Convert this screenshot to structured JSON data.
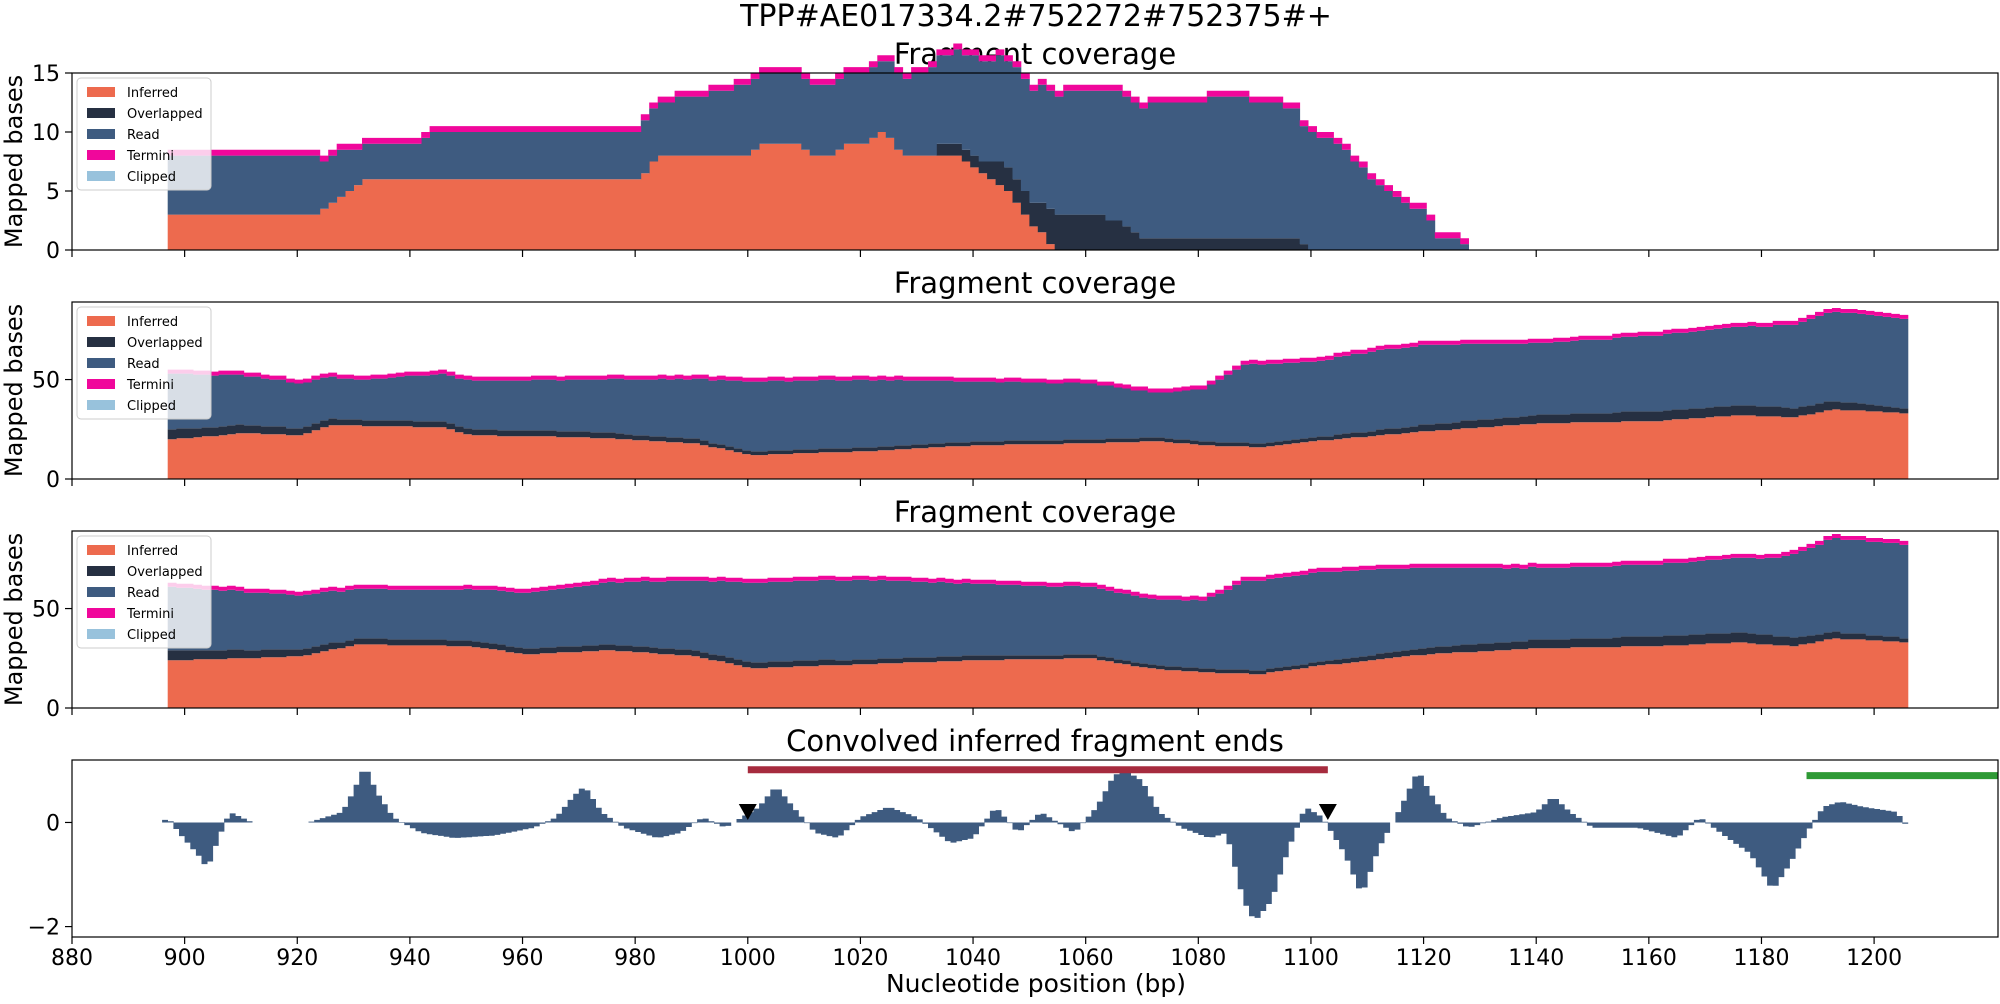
{
  "figure_title": "TPP#AE017334.2#752272#752375#+",
  "colors": {
    "inferred": "#ed6a4e",
    "overlapped": "#263042",
    "read": "#3e5b80",
    "termini": "#f0079b",
    "clipped": "#98c2dc",
    "conv": "#3e5b80",
    "red_bar": "#a62b3e",
    "green_bar": "#2e9a35"
  },
  "xlabel": "Nucleotide position (bp)",
  "xlim": [
    880,
    1222
  ],
  "xticks": [
    880,
    900,
    920,
    940,
    960,
    980,
    1000,
    1020,
    1040,
    1060,
    1080,
    1100,
    1120,
    1140,
    1160,
    1180,
    1200
  ],
  "legend": [
    "Inferred",
    "Overlapped",
    "Read",
    "Termini",
    "Clipped"
  ],
  "chart_data": [
    {
      "type": "area",
      "title": "Fragment coverage",
      "ylabel": "Mapped bases",
      "ylim": [
        0,
        15
      ],
      "yticks": [
        0,
        5,
        10,
        15
      ],
      "legend_position": "upper-left",
      "x_start": 897,
      "x_end": 1127,
      "series_keyframes": {
        "inferred": [
          [
            897,
            3
          ],
          [
            922,
            3
          ],
          [
            925,
            4
          ],
          [
            928,
            5
          ],
          [
            932,
            6
          ],
          [
            980,
            6
          ],
          [
            983,
            8
          ],
          [
            1000,
            8
          ],
          [
            1002,
            9
          ],
          [
            1008,
            9
          ],
          [
            1010,
            8
          ],
          [
            1015,
            8
          ],
          [
            1017,
            9
          ],
          [
            1021,
            9
          ],
          [
            1023,
            10
          ],
          [
            1025,
            9
          ],
          [
            1027,
            8
          ],
          [
            1037,
            8
          ],
          [
            1040,
            7
          ],
          [
            1043,
            6
          ],
          [
            1046,
            5
          ],
          [
            1048,
            3
          ],
          [
            1050,
            2
          ],
          [
            1052,
            1
          ],
          [
            1054,
            0
          ],
          [
            1127,
            0
          ]
        ],
        "overlapped": [
          [
            897,
            0
          ],
          [
            1032,
            0
          ],
          [
            1034,
            1
          ],
          [
            1040,
            1
          ],
          [
            1045,
            2
          ],
          [
            1050,
            2
          ],
          [
            1054,
            3
          ],
          [
            1062,
            3
          ],
          [
            1066,
            2
          ],
          [
            1070,
            1
          ],
          [
            1097,
            1
          ],
          [
            1099,
            0
          ],
          [
            1127,
            0
          ]
        ],
        "read": [
          [
            897,
            5
          ],
          [
            922,
            5
          ],
          [
            924,
            4
          ],
          [
            926,
            4
          ],
          [
            930,
            3
          ],
          [
            932,
            3
          ],
          [
            940,
            3
          ],
          [
            944,
            4
          ],
          [
            978,
            4
          ],
          [
            1000,
            6
          ],
          [
            1022,
            6
          ],
          [
            1030,
            7
          ],
          [
            1052,
            10
          ],
          [
            1066,
            11
          ],
          [
            1086,
            12
          ],
          [
            1096,
            11
          ],
          [
            1098,
            10
          ],
          [
            1104,
            9
          ],
          [
            1108,
            7
          ],
          [
            1112,
            5
          ],
          [
            1116,
            4
          ],
          [
            1120,
            3
          ],
          [
            1122,
            1
          ],
          [
            1124,
            1
          ],
          [
            1126,
            1
          ],
          [
            1127,
            0
          ]
        ],
        "termini": [
          [
            897,
            0.6
          ],
          [
            1127,
            0.4
          ]
        ],
        "clipped": [
          [
            897,
            0
          ],
          [
            1127,
            0
          ]
        ]
      }
    },
    {
      "type": "area",
      "title": "Fragment coverage",
      "ylabel": "Mapped bases",
      "ylim": [
        0,
        89
      ],
      "yticks": [
        0,
        50
      ],
      "legend_position": "upper-left",
      "x_start": 897,
      "x_end": 1206,
      "series_keyframes": {
        "inferred": [
          [
            897,
            20
          ],
          [
            910,
            23
          ],
          [
            920,
            22
          ],
          [
            925,
            27
          ],
          [
            945,
            26
          ],
          [
            950,
            22
          ],
          [
            970,
            21
          ],
          [
            990,
            18
          ],
          [
            1000,
            12
          ],
          [
            1020,
            14
          ],
          [
            1040,
            17
          ],
          [
            1060,
            18
          ],
          [
            1072,
            19
          ],
          [
            1080,
            17
          ],
          [
            1090,
            16
          ],
          [
            1100,
            19
          ],
          [
            1120,
            24
          ],
          [
            1140,
            28
          ],
          [
            1160,
            29
          ],
          [
            1175,
            32
          ],
          [
            1185,
            31
          ],
          [
            1192,
            35
          ],
          [
            1206,
            33
          ]
        ],
        "overlapped": [
          [
            897,
            5
          ],
          [
            930,
            3
          ],
          [
            970,
            3
          ],
          [
            1000,
            2
          ],
          [
            1060,
            2
          ],
          [
            1100,
            2
          ],
          [
            1130,
            4
          ],
          [
            1160,
            5
          ],
          [
            1180,
            5
          ],
          [
            1195,
            4
          ],
          [
            1206,
            2
          ]
        ],
        "read": [
          [
            897,
            28
          ],
          [
            930,
            20
          ],
          [
            945,
            24
          ],
          [
            970,
            26
          ],
          [
            990,
            30
          ],
          [
            1000,
            35
          ],
          [
            1020,
            34
          ],
          [
            1040,
            30
          ],
          [
            1060,
            28
          ],
          [
            1072,
            22
          ],
          [
            1080,
            26
          ],
          [
            1088,
            40
          ],
          [
            1100,
            38
          ],
          [
            1110,
            40
          ],
          [
            1120,
            40
          ],
          [
            1140,
            36
          ],
          [
            1160,
            38
          ],
          [
            1180,
            40
          ],
          [
            1192,
            45
          ],
          [
            1206,
            45
          ]
        ],
        "termini": [
          [
            897,
            2
          ],
          [
            1206,
            2
          ]
        ],
        "clipped": [
          [
            897,
            0
          ],
          [
            1206,
            0
          ]
        ]
      }
    },
    {
      "type": "area",
      "title": "Fragment coverage",
      "ylabel": "Mapped bases",
      "ylim": [
        0,
        89
      ],
      "yticks": [
        0,
        50
      ],
      "legend_position": "upper-left",
      "x_start": 897,
      "x_end": 1206,
      "series_keyframes": {
        "inferred": [
          [
            897,
            24
          ],
          [
            910,
            25
          ],
          [
            920,
            26
          ],
          [
            930,
            32
          ],
          [
            950,
            31
          ],
          [
            960,
            27
          ],
          [
            975,
            29
          ],
          [
            990,
            26
          ],
          [
            1000,
            20
          ],
          [
            1020,
            22
          ],
          [
            1040,
            24
          ],
          [
            1060,
            25
          ],
          [
            1070,
            20
          ],
          [
            1080,
            18
          ],
          [
            1090,
            17
          ],
          [
            1100,
            21
          ],
          [
            1120,
            27
          ],
          [
            1140,
            30
          ],
          [
            1160,
            31
          ],
          [
            1175,
            33
          ],
          [
            1185,
            31
          ],
          [
            1192,
            35
          ],
          [
            1206,
            33
          ]
        ],
        "overlapped": [
          [
            897,
            5
          ],
          [
            930,
            3
          ],
          [
            970,
            3
          ],
          [
            1000,
            3
          ],
          [
            1060,
            2
          ],
          [
            1100,
            2
          ],
          [
            1130,
            4
          ],
          [
            1160,
            5
          ],
          [
            1180,
            5
          ],
          [
            1195,
            3
          ],
          [
            1206,
            2
          ]
        ],
        "read": [
          [
            897,
            32
          ],
          [
            930,
            25
          ],
          [
            945,
            25
          ],
          [
            970,
            30
          ],
          [
            990,
            35
          ],
          [
            1000,
            40
          ],
          [
            1020,
            40
          ],
          [
            1040,
            36
          ],
          [
            1060,
            34
          ],
          [
            1072,
            33
          ],
          [
            1080,
            34
          ],
          [
            1088,
            45
          ],
          [
            1100,
            45
          ],
          [
            1110,
            43
          ],
          [
            1120,
            40
          ],
          [
            1140,
            36
          ],
          [
            1160,
            36
          ],
          [
            1180,
            38
          ],
          [
            1192,
            47
          ],
          [
            1206,
            47
          ]
        ],
        "termini": [
          [
            897,
            2
          ],
          [
            1206,
            2
          ]
        ],
        "clipped": [
          [
            897,
            0
          ],
          [
            1206,
            0
          ]
        ]
      }
    },
    {
      "type": "bar",
      "title": "Convolved inferred fragment ends",
      "ylim": [
        -2.2,
        1.2
      ],
      "yticks": [
        -2,
        0
      ],
      "x_segments": [
        [
          896,
          912
        ],
        [
          922,
          1206
        ]
      ],
      "value_keyframes": [
        [
          896,
          0
        ],
        [
          897,
          0.1
        ],
        [
          899,
          -0.2
        ],
        [
          903,
          -0.7
        ],
        [
          904,
          -0.9
        ],
        [
          906,
          -0.3
        ],
        [
          908,
          0.2
        ],
        [
          910,
          0.1
        ],
        [
          912,
          0
        ],
        [
          922,
          0
        ],
        [
          928,
          0.2
        ],
        [
          930,
          0.6
        ],
        [
          932,
          1.1
        ],
        [
          934,
          0.6
        ],
        [
          937,
          0.1
        ],
        [
          942,
          -0.2
        ],
        [
          948,
          -0.3
        ],
        [
          955,
          -0.25
        ],
        [
          962,
          -0.1
        ],
        [
          966,
          0.1
        ],
        [
          969,
          0.5
        ],
        [
          971,
          0.7
        ],
        [
          974,
          0.2
        ],
        [
          978,
          -0.1
        ],
        [
          984,
          -0.3
        ],
        [
          988,
          -0.2
        ],
        [
          992,
          0.1
        ],
        [
          996,
          -0.1
        ],
        [
          1002,
          0.3
        ],
        [
          1005,
          0.7
        ],
        [
          1008,
          0.3
        ],
        [
          1012,
          -0.2
        ],
        [
          1016,
          -0.3
        ],
        [
          1020,
          0.1
        ],
        [
          1025,
          0.3
        ],
        [
          1030,
          0.1
        ],
        [
          1036,
          -0.4
        ],
        [
          1040,
          -0.3
        ],
        [
          1044,
          0.3
        ],
        [
          1048,
          -0.2
        ],
        [
          1052,
          0.2
        ],
        [
          1058,
          -0.2
        ],
        [
          1062,
          0.3
        ],
        [
          1065,
          0.9
        ],
        [
          1067,
          1.0
        ],
        [
          1070,
          0.8
        ],
        [
          1073,
          0.2
        ],
        [
          1077,
          -0.1
        ],
        [
          1082,
          -0.3
        ],
        [
          1085,
          -0.2
        ],
        [
          1088,
          -1.5
        ],
        [
          1090,
          -1.9
        ],
        [
          1093,
          -1.5
        ],
        [
          1096,
          -0.5
        ],
        [
          1099,
          0.3
        ],
        [
          1102,
          0.1
        ],
        [
          1106,
          -0.6
        ],
        [
          1109,
          -1.4
        ],
        [
          1112,
          -0.5
        ],
        [
          1116,
          0.3
        ],
        [
          1119,
          1.0
        ],
        [
          1121,
          0.6
        ],
        [
          1124,
          0.1
        ],
        [
          1128,
          -0.1
        ],
        [
          1134,
          0.1
        ],
        [
          1140,
          0.2
        ],
        [
          1143,
          0.5
        ],
        [
          1146,
          0.2
        ],
        [
          1150,
          -0.1
        ],
        [
          1158,
          -0.1
        ],
        [
          1165,
          -0.3
        ],
        [
          1169,
          0.1
        ],
        [
          1174,
          -0.3
        ],
        [
          1178,
          -0.6
        ],
        [
          1182,
          -1.3
        ],
        [
          1185,
          -0.8
        ],
        [
          1188,
          -0.2
        ],
        [
          1191,
          0.3
        ],
        [
          1194,
          0.4
        ],
        [
          1198,
          0.3
        ],
        [
          1204,
          0.2
        ],
        [
          1206,
          -0.1
        ]
      ],
      "markers_x": [
        1000,
        1103
      ],
      "red_bar": [
        1000,
        1103
      ],
      "green_bar": [
        1188,
        1222
      ],
      "hbar_y": 0.9
    }
  ]
}
